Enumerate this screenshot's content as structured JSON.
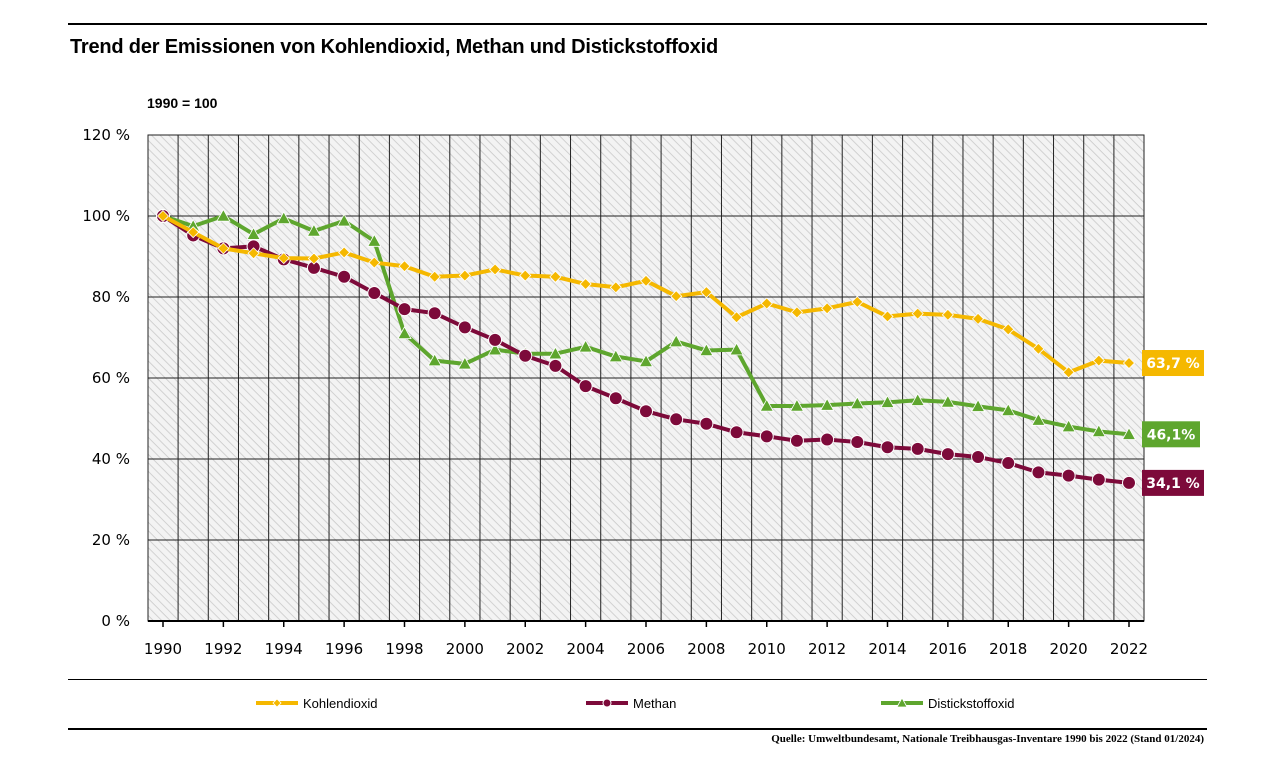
{
  "chart_data": {
    "type": "line",
    "title": "Trend der Emissionen von Kohlendioxid, Methan und Distickstoffoxid",
    "subtitle": "1990 = 100",
    "ylim": [
      0,
      120
    ],
    "y_ticks": [
      0,
      20,
      40,
      60,
      80,
      100,
      120
    ],
    "y_tick_labels": [
      "0 %",
      "20 %",
      "40 %",
      "60 %",
      "80 %",
      "100 %",
      "120 %"
    ],
    "x": [
      1990,
      1991,
      1992,
      1993,
      1994,
      1995,
      1996,
      1997,
      1998,
      1999,
      2000,
      2001,
      2002,
      2003,
      2004,
      2005,
      2006,
      2007,
      2008,
      2009,
      2010,
      2011,
      2012,
      2013,
      2014,
      2015,
      2016,
      2017,
      2018,
      2019,
      2020,
      2021,
      2022
    ],
    "x_tick_labels": [
      "1990",
      "1992",
      "1994",
      "1996",
      "1998",
      "2000",
      "2002",
      "2004",
      "2006",
      "2008",
      "2010",
      "2012",
      "2014",
      "2016",
      "2018",
      "2020",
      "2022"
    ],
    "grid": true,
    "legend_position": "bottom",
    "series": [
      {
        "name": "Kohlendioxid",
        "color": "#f5b800",
        "marker": "diamond",
        "values": [
          100,
          96,
          92,
          90.8,
          89.6,
          89.5,
          91,
          88.5,
          87.6,
          85,
          85.3,
          86.8,
          85.3,
          85,
          83.2,
          82.4,
          84,
          80.2,
          81.2,
          75,
          78.4,
          76.2,
          77.2,
          78.8,
          75.2,
          75.9,
          75.6,
          74.6,
          72,
          67.2,
          61.4,
          64.3,
          63.7
        ],
        "end_label": "63,7 %"
      },
      {
        "name": "Methan",
        "color": "#7d0a3a",
        "marker": "circle",
        "values": [
          100,
          95.2,
          92,
          92.5,
          89.3,
          87.2,
          85,
          81,
          77,
          76,
          72.5,
          69.4,
          65.5,
          63,
          58,
          55,
          51.8,
          49.8,
          48.7,
          46.6,
          45.6,
          44.5,
          44.8,
          44.2,
          42.9,
          42.5,
          41.2,
          40.5,
          39,
          36.7,
          35.9,
          34.9,
          34.1
        ],
        "end_label": "34,1 %"
      },
      {
        "name": "Distickstoffoxid",
        "color": "#5ea62e",
        "marker": "triangle",
        "values": [
          100,
          97.5,
          100,
          95.5,
          99.4,
          96.3,
          98.8,
          93.8,
          71,
          64.3,
          63.5,
          67,
          66,
          66,
          67.7,
          65.3,
          64.1,
          69,
          66.8,
          67,
          53.1,
          53.1,
          53.3,
          53.7,
          54,
          54.5,
          54.1,
          53,
          52,
          49.6,
          48,
          46.8,
          46.1
        ],
        "end_label": "46,1%"
      }
    ]
  },
  "source": "Quelle: Umweltbundesamt, Nationale Treibhausgas-Inventare 1990 bis 2022 (Stand 01/2024)"
}
